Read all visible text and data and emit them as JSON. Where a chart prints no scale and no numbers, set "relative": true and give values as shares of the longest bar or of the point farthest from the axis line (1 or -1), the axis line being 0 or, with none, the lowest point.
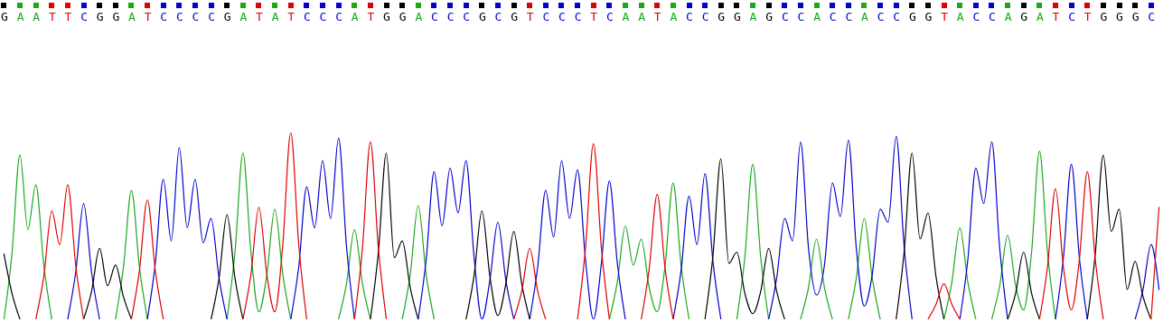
{
  "chart_data": {
    "type": "line",
    "relative": true,
    "categories": [
      "G",
      null,
      "A",
      null,
      "A",
      null,
      "T",
      null,
      "T",
      null,
      "C",
      null,
      "G",
      null,
      "G",
      null,
      "A",
      null,
      "T",
      null,
      "C",
      null,
      "C",
      null,
      "C",
      null,
      "C",
      null,
      "G",
      null,
      "A",
      null,
      "T",
      null,
      "A",
      null,
      "T",
      null,
      "C",
      null,
      "C",
      null,
      "C",
      null,
      "A",
      null,
      "T",
      null,
      "G",
      null,
      "G",
      null,
      "A",
      null,
      "C",
      null,
      "C",
      null,
      "C",
      null,
      "G",
      null,
      "C",
      null,
      "G",
      null,
      "T",
      null,
      "C",
      null,
      "C",
      null,
      "C",
      null,
      "T",
      null,
      "C",
      null,
      "A",
      null,
      "A",
      null,
      "T",
      null,
      "A",
      null,
      "C",
      null,
      "C",
      null,
      "G",
      null,
      "G",
      null,
      "A",
      null,
      "G",
      null,
      "C",
      null,
      "C",
      null,
      "A",
      null,
      "C",
      null,
      "C",
      null,
      "A",
      null,
      "C",
      null,
      "C",
      null,
      "G",
      null,
      "G",
      null,
      "T",
      null,
      "A",
      null,
      "C",
      null,
      "C",
      null,
      "A",
      null,
      "G",
      null,
      "A",
      null,
      "T",
      null,
      "C",
      null,
      "T",
      null,
      "G",
      null,
      "G",
      null,
      "G",
      null,
      "C",
      null
    ],
    "series": [
      {
        "color": "#1aa81a",
        "values": [
          0,
          0.35,
          0.88,
          0.48,
          0.72,
          0.29,
          0,
          null,
          null,
          null,
          null,
          null,
          null,
          null,
          0,
          0.28,
          0.69,
          0.28,
          0,
          null,
          null,
          null,
          null,
          null,
          null,
          null,
          null,
          null,
          0,
          0.36,
          0.89,
          0.36,
          0.04,
          0.24,
          0.59,
          0.24,
          0,
          null,
          null,
          null,
          null,
          null,
          0,
          0.19,
          0.48,
          0.19,
          0,
          null,
          null,
          null,
          0,
          0.24,
          0.61,
          0.24,
          0,
          null,
          null,
          null,
          null,
          null,
          null,
          null,
          null,
          null,
          null,
          null,
          null,
          null,
          null,
          null,
          null,
          null,
          null,
          null,
          null,
          null,
          0,
          0.2,
          0.5,
          0.29,
          0.43,
          0.17,
          0.04,
          0.29,
          0.73,
          0.29,
          0,
          null,
          null,
          null,
          null,
          null,
          0,
          0.33,
          0.83,
          0.33,
          0,
          null,
          null,
          null,
          0,
          0.17,
          0.43,
          0.17,
          0,
          null,
          0,
          0.22,
          0.54,
          0.22,
          0,
          null,
          null,
          null,
          null,
          null,
          null,
          null,
          0,
          0.2,
          0.49,
          0.2,
          0,
          null,
          0,
          0.18,
          0.45,
          0.18,
          0.05,
          0.36,
          0.9,
          0.36,
          0,
          null,
          null,
          null,
          null,
          null,
          null,
          null,
          null,
          null,
          null,
          null,
          null,
          null
        ]
      },
      {
        "color": "#0000d0",
        "values": [
          null,
          null,
          null,
          null,
          null,
          null,
          null,
          null,
          0,
          0.25,
          0.62,
          0.25,
          0,
          null,
          null,
          null,
          null,
          null,
          0,
          0.3,
          0.75,
          0.42,
          0.92,
          0.49,
          0.75,
          0.41,
          0.54,
          0.22,
          0,
          null,
          null,
          null,
          null,
          null,
          null,
          null,
          0,
          0.28,
          0.71,
          0.49,
          0.85,
          0.54,
          0.97,
          0.39,
          0,
          null,
          null,
          null,
          null,
          null,
          null,
          null,
          0,
          0.32,
          0.79,
          0.5,
          0.81,
          0.57,
          0.85,
          0.34,
          0,
          0.21,
          0.52,
          0.21,
          0,
          null,
          0,
          0.28,
          0.69,
          0.44,
          0.85,
          0.54,
          0.8,
          0.32,
          0,
          0.3,
          0.74,
          0.3,
          0,
          null,
          null,
          null,
          null,
          null,
          0,
          0.26,
          0.66,
          0.4,
          0.78,
          0.31,
          0,
          null,
          null,
          null,
          null,
          null,
          0,
          0.22,
          0.54,
          0.42,
          0.95,
          0.38,
          0.13,
          0.29,
          0.73,
          0.55,
          0.96,
          0.38,
          0.07,
          0.24,
          0.59,
          0.52,
          0.98,
          0.39,
          0,
          null,
          null,
          null,
          null,
          null,
          0,
          0.32,
          0.81,
          0.62,
          0.95,
          0.38,
          0,
          null,
          null,
          null,
          null,
          null,
          0,
          0.33,
          0.83,
          0.33,
          0,
          null,
          null,
          null,
          null,
          null,
          0,
          0.16,
          0.4,
          0.16
        ]
      },
      {
        "color": "#000000",
        "values": [
          0.35,
          0.14,
          0,
          null,
          null,
          null,
          null,
          null,
          null,
          null,
          0,
          0.15,
          0.38,
          0.18,
          0.29,
          0.12,
          0,
          null,
          null,
          null,
          null,
          null,
          null,
          null,
          null,
          null,
          0,
          0.22,
          0.56,
          0.22,
          0,
          null,
          null,
          null,
          null,
          null,
          null,
          null,
          null,
          null,
          null,
          null,
          null,
          null,
          null,
          null,
          0,
          0.36,
          0.89,
          0.33,
          0.42,
          0.17,
          0,
          null,
          null,
          null,
          null,
          null,
          0,
          0.23,
          0.58,
          0.23,
          0.02,
          0.19,
          0.47,
          0.19,
          0,
          null,
          null,
          null,
          null,
          null,
          null,
          null,
          null,
          null,
          null,
          null,
          null,
          null,
          null,
          null,
          null,
          null,
          null,
          null,
          null,
          null,
          0,
          0.34,
          0.86,
          0.3,
          0.36,
          0.14,
          0.03,
          0.15,
          0.38,
          0.15,
          0,
          null,
          null,
          null,
          null,
          null,
          null,
          null,
          null,
          null,
          null,
          null,
          null,
          null,
          0,
          0.36,
          0.89,
          0.43,
          0.57,
          0.23,
          0,
          null,
          null,
          null,
          null,
          null,
          null,
          null,
          0,
          0.14,
          0.36,
          0.14,
          0,
          null,
          null,
          null,
          null,
          null,
          0,
          0.35,
          0.88,
          0.47,
          0.59,
          0.16,
          0.31,
          0.12,
          0,
          null
        ]
      },
      {
        "color": "#e00000",
        "values": [
          null,
          null,
          null,
          null,
          0,
          0.23,
          0.58,
          0.4,
          0.72,
          0.29,
          0,
          null,
          null,
          null,
          null,
          null,
          0,
          0.26,
          0.64,
          0.26,
          0,
          null,
          null,
          null,
          null,
          null,
          null,
          null,
          null,
          null,
          0,
          0.24,
          0.6,
          0.24,
          0.04,
          0.4,
          1.0,
          0.4,
          0,
          null,
          null,
          null,
          null,
          null,
          0,
          0.38,
          0.95,
          0.38,
          0,
          null,
          null,
          null,
          null,
          null,
          null,
          null,
          null,
          null,
          null,
          null,
          null,
          null,
          null,
          null,
          0,
          0.15,
          0.38,
          0.15,
          0,
          null,
          null,
          null,
          0,
          0.38,
          0.94,
          0.38,
          0,
          null,
          null,
          null,
          0,
          0.27,
          0.67,
          0.27,
          0,
          null,
          null,
          null,
          null,
          null,
          null,
          null,
          null,
          null,
          null,
          null,
          null,
          null,
          null,
          null,
          null,
          null,
          null,
          null,
          null,
          null,
          null,
          null,
          null,
          null,
          null,
          null,
          null,
          null,
          null,
          null,
          0,
          0.08,
          0.19,
          0.08,
          0,
          null,
          null,
          null,
          null,
          null,
          null,
          null,
          null,
          null,
          0,
          0.28,
          0.7,
          0.28,
          0.05,
          0.32,
          0.79,
          0.32,
          0,
          null,
          null,
          null,
          null,
          null,
          0,
          0.6
        ]
      }
    ]
  }
}
